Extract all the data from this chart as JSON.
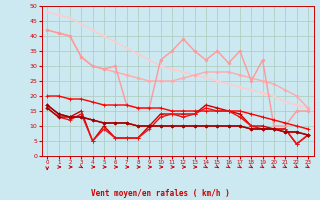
{
  "bg_color": "#cce8f0",
  "grid_color": "#aaccbb",
  "xlabel": "Vent moyen/en rafales ( km/h )",
  "xlim": [
    -0.5,
    23.5
  ],
  "ylim": [
    0,
    50
  ],
  "yticks": [
    0,
    5,
    10,
    15,
    20,
    25,
    30,
    35,
    40,
    45,
    50
  ],
  "xticks": [
    0,
    1,
    2,
    3,
    4,
    5,
    6,
    7,
    8,
    9,
    10,
    11,
    12,
    13,
    14,
    15,
    16,
    17,
    18,
    19,
    20,
    21,
    22,
    23
  ],
  "lines": [
    {
      "x": [
        0,
        1,
        2,
        3,
        4,
        5,
        6,
        7,
        8,
        9,
        10,
        11,
        12,
        13,
        14,
        15,
        16,
        17,
        18,
        19,
        20,
        21,
        22,
        23
      ],
      "y": [
        48,
        47,
        46,
        44,
        42,
        40,
        38,
        36,
        34,
        32,
        30,
        29,
        28,
        27,
        26,
        25,
        24,
        23,
        22,
        21,
        20,
        18,
        17,
        16
      ],
      "color": "#ffcccc",
      "lw": 1.0,
      "marker": "D",
      "ms": 1.5
    },
    {
      "x": [
        0,
        1,
        2,
        3,
        4,
        5,
        6,
        7,
        8,
        9,
        10,
        11,
        12,
        13,
        14,
        15,
        16,
        17,
        18,
        19,
        20,
        21,
        22,
        23
      ],
      "y": [
        42,
        41,
        40,
        33,
        30,
        29,
        28,
        27,
        26,
        25,
        25,
        25,
        26,
        27,
        28,
        28,
        28,
        27,
        26,
        25,
        24,
        22,
        20,
        16
      ],
      "color": "#ffaaaa",
      "lw": 1.0,
      "marker": "D",
      "ms": 1.5
    },
    {
      "x": [
        0,
        1,
        2,
        3,
        4,
        5,
        6,
        7,
        8,
        9,
        10,
        11,
        12,
        13,
        14,
        15,
        16,
        17,
        18,
        19,
        20,
        21,
        22,
        23
      ],
      "y": [
        42,
        41,
        40,
        33,
        30,
        29,
        30,
        17,
        16,
        16,
        32,
        35,
        39,
        35,
        32,
        35,
        31,
        35,
        25,
        32,
        10,
        10,
        15,
        15
      ],
      "color": "#ff9999",
      "lw": 1.0,
      "marker": "D",
      "ms": 1.5
    },
    {
      "x": [
        0,
        1,
        2,
        3,
        4,
        5,
        6,
        7,
        8,
        9,
        10,
        11,
        12,
        13,
        14,
        15,
        16,
        17,
        18,
        19,
        20,
        21,
        22,
        23
      ],
      "y": [
        20,
        20,
        19,
        19,
        18,
        17,
        17,
        17,
        16,
        16,
        16,
        15,
        15,
        15,
        15,
        15,
        15,
        15,
        14,
        13,
        12,
        11,
        10,
        9
      ],
      "color": "#ff0000",
      "lw": 1.0,
      "marker": "+",
      "ms": 3
    },
    {
      "x": [
        0,
        1,
        2,
        3,
        4,
        5,
        6,
        7,
        8,
        9,
        10,
        11,
        12,
        13,
        14,
        15,
        16,
        17,
        18,
        19,
        20,
        21,
        22,
        23
      ],
      "y": [
        17,
        14,
        13,
        15,
        5,
        10,
        6,
        6,
        6,
        10,
        14,
        14,
        14,
        14,
        17,
        16,
        15,
        14,
        10,
        10,
        9,
        9,
        4,
        7
      ],
      "color": "#cc0000",
      "lw": 1.0,
      "marker": "+",
      "ms": 3
    },
    {
      "x": [
        0,
        1,
        2,
        3,
        4,
        5,
        6,
        7,
        8,
        9,
        10,
        11,
        12,
        13,
        14,
        15,
        16,
        17,
        18,
        19,
        20,
        21,
        22,
        23
      ],
      "y": [
        16,
        13,
        12,
        14,
        5,
        9,
        6,
        6,
        6,
        9,
        13,
        14,
        13,
        14,
        16,
        15,
        15,
        13,
        10,
        9,
        9,
        9,
        4,
        7
      ],
      "color": "#ee1111",
      "lw": 1.0,
      "marker": "+",
      "ms": 3
    },
    {
      "x": [
        0,
        1,
        2,
        3,
        4,
        5,
        6,
        7,
        8,
        9,
        10,
        11,
        12,
        13,
        14,
        15,
        16,
        17,
        18,
        19,
        20,
        21,
        22,
        23
      ],
      "y": [
        17,
        14,
        13,
        13,
        12,
        11,
        11,
        11,
        10,
        10,
        10,
        10,
        10,
        10,
        10,
        10,
        10,
        10,
        9,
        9,
        9,
        8,
        8,
        7
      ],
      "color": "#990000",
      "lw": 1.0,
      "marker": "D",
      "ms": 1.5
    },
    {
      "x": [
        0,
        1,
        2,
        3,
        4,
        5,
        6,
        7,
        8,
        9,
        10,
        11,
        12,
        13,
        14,
        15,
        16,
        17,
        18,
        19,
        20,
        21,
        22,
        23
      ],
      "y": [
        16,
        13,
        13,
        13,
        12,
        11,
        11,
        11,
        10,
        10,
        10,
        10,
        10,
        10,
        10,
        10,
        10,
        10,
        9,
        9,
        9,
        8,
        8,
        7
      ],
      "color": "#aa0000",
      "lw": 1.0,
      "marker": "D",
      "ms": 1.5
    }
  ],
  "arrow_color": "#cc0000",
  "arrow_directions": [
    270,
    0,
    0,
    315,
    0,
    0,
    0,
    0,
    0,
    0,
    0,
    0,
    0,
    0,
    315,
    315,
    315,
    315,
    315,
    315,
    315,
    315,
    315,
    315
  ]
}
